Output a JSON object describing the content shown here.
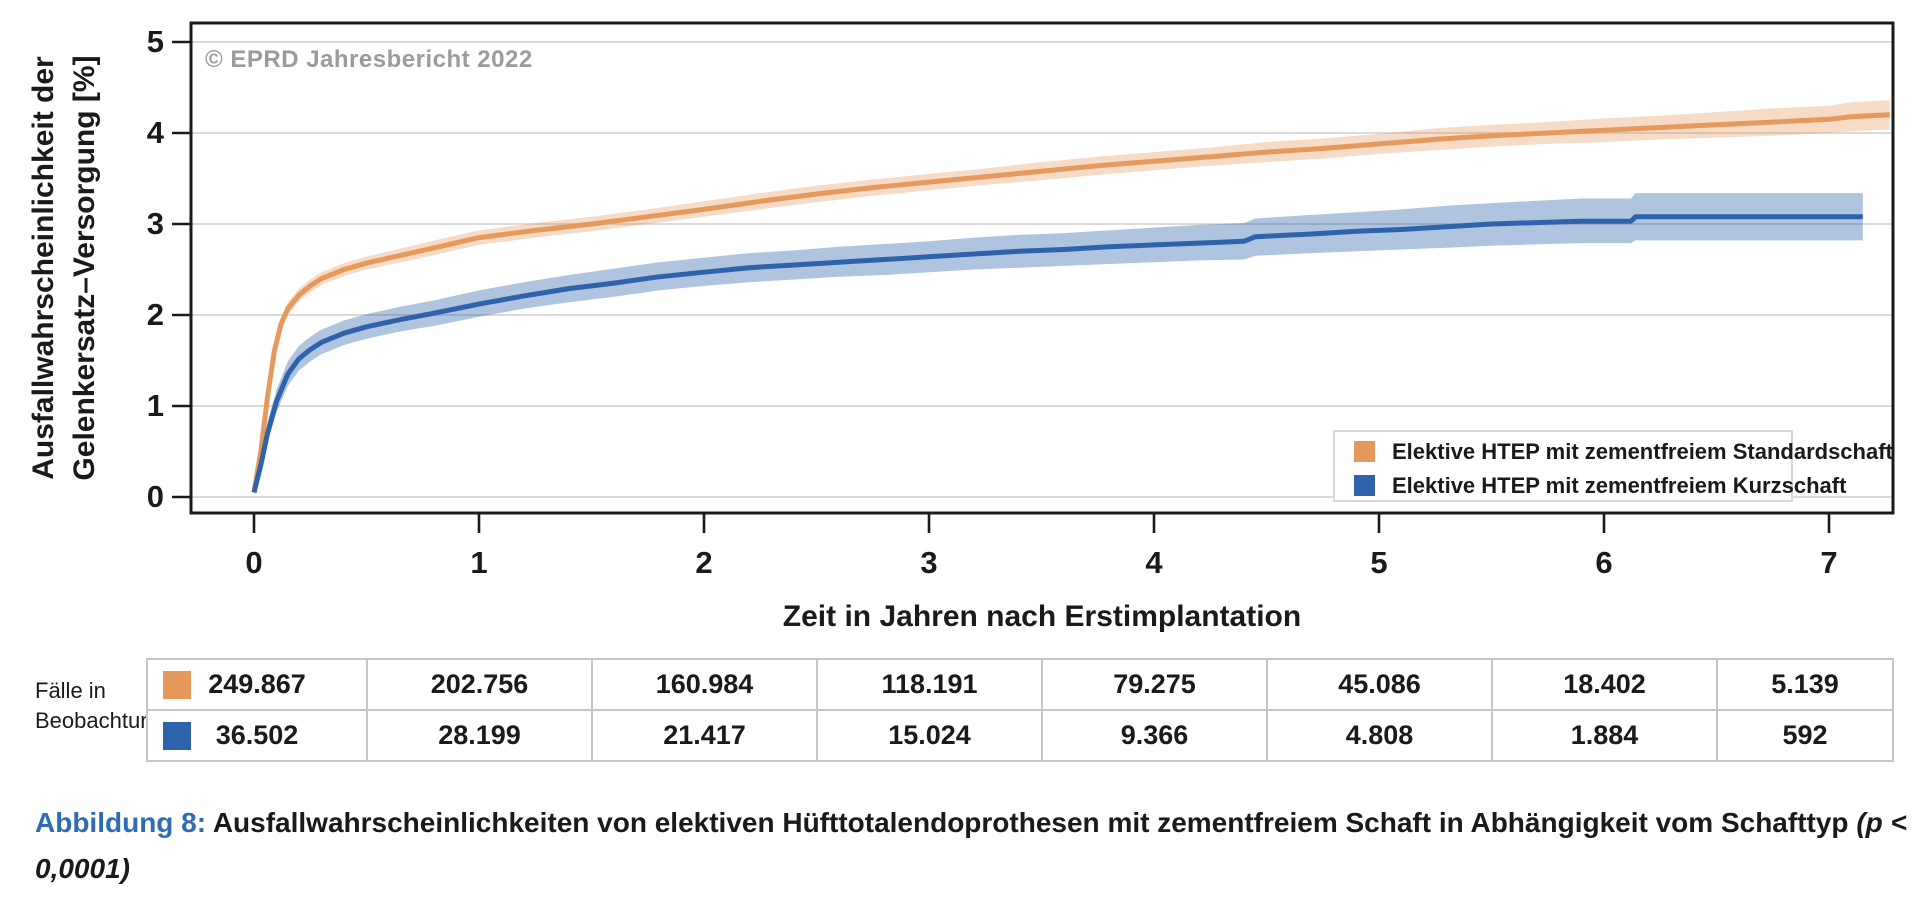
{
  "copyright": "© EPRD Jahresbericht 2022",
  "colors": {
    "orange_line": "#E6995C",
    "orange_band": "rgba(230,153,92,0.35)",
    "blue_line": "#2E63AB",
    "blue_band": "rgba(46,99,171,0.38)",
    "grid": "#D4D4D4",
    "frame": "#1A1A1A",
    "copyright_gray": "#9B9B9B",
    "caption_blue": "#2E6DB4",
    "table_border": "#C5C5C5"
  },
  "chart_data": {
    "type": "line",
    "title": "",
    "xlabel": "Zeit in Jahren nach Erstimplantation",
    "ylabel_line1": "Ausfallwahrscheinlichkeit der",
    "ylabel_line2": "Gelenkersatz–Versorgung [%]",
    "xticks": [
      0,
      1,
      2,
      3,
      4,
      5,
      6,
      7
    ],
    "yticks": [
      0,
      1,
      2,
      3,
      4,
      5
    ],
    "xlim": [
      -0.28,
      7.29
    ],
    "ylim": [
      -0.18,
      5.21
    ],
    "grid": "horizontal",
    "legend_position": "lower right",
    "watermark": "© EPRD Jahresbericht 2022",
    "series": [
      {
        "name": "Elektive HTEP mit zementfreiem Standardschaft",
        "color": "#E6995C",
        "band_color": "rgba(230,153,92,0.35)",
        "points_format": [
          "time_years",
          "failure_pct",
          "ci_low_pct",
          "ci_high_pct"
        ],
        "points": [
          [
            0,
            0.05,
            0.03,
            0.08
          ],
          [
            0.03,
            0.5,
            0.46,
            0.55
          ],
          [
            0.06,
            1.1,
            1.04,
            1.16
          ],
          [
            0.09,
            1.6,
            1.53,
            1.67
          ],
          [
            0.12,
            1.9,
            1.83,
            1.97
          ],
          [
            0.15,
            2.07,
            2.0,
            2.14
          ],
          [
            0.2,
            2.22,
            2.15,
            2.29
          ],
          [
            0.25,
            2.32,
            2.25,
            2.39
          ],
          [
            0.3,
            2.4,
            2.33,
            2.47
          ],
          [
            0.4,
            2.5,
            2.43,
            2.57
          ],
          [
            0.5,
            2.57,
            2.5,
            2.64
          ],
          [
            0.75,
            2.71,
            2.63,
            2.79
          ],
          [
            1.0,
            2.85,
            2.77,
            2.93
          ],
          [
            1.25,
            2.93,
            2.85,
            3.01
          ],
          [
            1.5,
            3.0,
            2.92,
            3.08
          ],
          [
            1.75,
            3.08,
            3.0,
            3.16
          ],
          [
            2.0,
            3.16,
            3.08,
            3.25
          ],
          [
            2.25,
            3.25,
            3.16,
            3.34
          ],
          [
            2.5,
            3.33,
            3.24,
            3.42
          ],
          [
            2.75,
            3.4,
            3.31,
            3.49
          ],
          [
            3.0,
            3.46,
            3.37,
            3.55
          ],
          [
            3.25,
            3.52,
            3.43,
            3.61
          ],
          [
            3.5,
            3.58,
            3.48,
            3.68
          ],
          [
            3.75,
            3.64,
            3.54,
            3.74
          ],
          [
            4.0,
            3.69,
            3.59,
            3.79
          ],
          [
            4.25,
            3.74,
            3.64,
            3.84
          ],
          [
            4.5,
            3.79,
            3.68,
            3.9
          ],
          [
            4.75,
            3.83,
            3.72,
            3.94
          ],
          [
            5.0,
            3.88,
            3.77,
            3.99
          ],
          [
            5.25,
            3.93,
            3.81,
            4.05
          ],
          [
            5.5,
            3.97,
            3.85,
            4.09
          ],
          [
            5.75,
            4.0,
            3.88,
            4.12
          ],
          [
            6.0,
            4.03,
            3.9,
            4.16
          ],
          [
            6.25,
            4.06,
            3.93,
            4.19
          ],
          [
            6.5,
            4.09,
            3.95,
            4.23
          ],
          [
            6.75,
            4.12,
            3.97,
            4.27
          ],
          [
            7.0,
            4.15,
            4.0,
            4.3
          ],
          [
            7.1,
            4.18,
            4.02,
            4.34
          ],
          [
            7.27,
            4.2,
            4.04,
            4.36
          ]
        ]
      },
      {
        "name": "Elektive HTEP mit zementfreiem Kurzschaft",
        "color": "#2E63AB",
        "band_color": "rgba(46,99,171,0.38)",
        "points_format": [
          "time_years",
          "failure_pct",
          "ci_low_pct",
          "ci_high_pct"
        ],
        "points": [
          [
            0,
            0.05,
            0.02,
            0.1
          ],
          [
            0.03,
            0.35,
            0.28,
            0.44
          ],
          [
            0.06,
            0.7,
            0.6,
            0.82
          ],
          [
            0.1,
            1.05,
            0.93,
            1.18
          ],
          [
            0.15,
            1.35,
            1.22,
            1.49
          ],
          [
            0.2,
            1.52,
            1.39,
            1.66
          ],
          [
            0.25,
            1.62,
            1.49,
            1.76
          ],
          [
            0.3,
            1.7,
            1.57,
            1.84
          ],
          [
            0.4,
            1.8,
            1.67,
            1.94
          ],
          [
            0.5,
            1.87,
            1.74,
            2.01
          ],
          [
            0.65,
            1.95,
            1.82,
            2.09
          ],
          [
            0.8,
            2.02,
            1.88,
            2.16
          ],
          [
            1.0,
            2.12,
            1.98,
            2.27
          ],
          [
            1.2,
            2.21,
            2.07,
            2.36
          ],
          [
            1.4,
            2.29,
            2.14,
            2.44
          ],
          [
            1.6,
            2.35,
            2.2,
            2.51
          ],
          [
            1.8,
            2.42,
            2.27,
            2.58
          ],
          [
            2.0,
            2.47,
            2.32,
            2.63
          ],
          [
            2.2,
            2.52,
            2.36,
            2.68
          ],
          [
            2.4,
            2.55,
            2.39,
            2.71
          ],
          [
            2.6,
            2.58,
            2.42,
            2.75
          ],
          [
            2.8,
            2.61,
            2.44,
            2.78
          ],
          [
            3.0,
            2.64,
            2.47,
            2.81
          ],
          [
            3.2,
            2.67,
            2.5,
            2.85
          ],
          [
            3.4,
            2.7,
            2.52,
            2.88
          ],
          [
            3.6,
            2.72,
            2.54,
            2.9
          ],
          [
            3.8,
            2.75,
            2.56,
            2.93
          ],
          [
            4.0,
            2.77,
            2.58,
            2.96
          ],
          [
            4.2,
            2.79,
            2.6,
            2.99
          ],
          [
            4.4,
            2.81,
            2.61,
            3.01
          ],
          [
            4.45,
            2.86,
            2.65,
            3.06
          ],
          [
            4.7,
            2.89,
            2.68,
            3.1
          ],
          [
            4.9,
            2.92,
            2.7,
            3.13
          ],
          [
            5.1,
            2.94,
            2.72,
            3.16
          ],
          [
            5.3,
            2.97,
            2.74,
            3.2
          ],
          [
            5.5,
            3.0,
            2.76,
            3.23
          ],
          [
            5.75,
            3.02,
            2.78,
            3.26
          ],
          [
            5.9,
            3.03,
            2.79,
            3.28
          ],
          [
            6.12,
            3.03,
            2.79,
            3.28
          ],
          [
            6.14,
            3.08,
            2.82,
            3.34
          ],
          [
            7.15,
            3.08,
            2.82,
            3.34
          ]
        ]
      }
    ]
  },
  "legend": {
    "items": [
      {
        "label": "Elektive HTEP mit zementfreiem Standardschaft",
        "color": "#E6995C"
      },
      {
        "label": "Elektive HTEP mit zementfreiem Kurzschaft",
        "color": "#2E63AB"
      }
    ]
  },
  "risk_table": {
    "row_label_line1": "Fälle in",
    "row_label_line2": "Beobachtung",
    "rows": [
      {
        "series": "standardschaft",
        "color": "#E6995C",
        "values": [
          "249.867",
          "202.756",
          "160.984",
          "118.191",
          "79.275",
          "45.086",
          "18.402",
          "5.139"
        ]
      },
      {
        "series": "kurzschaft",
        "color": "#2E63AB",
        "values": [
          "36.502",
          "28.199",
          "21.417",
          "15.024",
          "9.366",
          "4.808",
          "1.884",
          "592"
        ]
      }
    ]
  },
  "caption": {
    "label": "Abbildung 8:",
    "text": " Ausfallwahrscheinlichkeiten von elektiven Hüfttotalendoprothesen mit zementfreiem Schaft in Abhängigkeit vom Schafttyp ",
    "stat": "(p < 0,0001)"
  }
}
